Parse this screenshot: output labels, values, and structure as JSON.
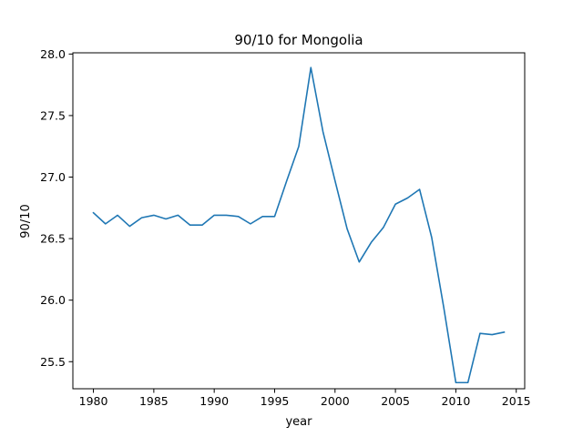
{
  "chart_data": {
    "type": "line",
    "title": "90/10 for Mongolia",
    "xlabel": "year",
    "ylabel": "90/10",
    "xlim": [
      1978.3,
      2015.7
    ],
    "ylim": [
      25.28,
      28.01
    ],
    "xticks": [
      1980,
      1985,
      1990,
      1995,
      2000,
      2005,
      2010,
      2015
    ],
    "yticks": [
      25.5,
      26.0,
      26.5,
      27.0,
      27.5,
      28.0
    ],
    "grid": false,
    "series": [
      {
        "color": "#1f77b4",
        "x": [
          1980,
          1981,
          1982,
          1983,
          1984,
          1985,
          1986,
          1987,
          1988,
          1989,
          1990,
          1991,
          1992,
          1993,
          1994,
          1995,
          1996,
          1997,
          1998,
          1999,
          2000,
          2001,
          2002,
          2003,
          2004,
          2005,
          2006,
          2007,
          2008,
          2009,
          2010,
          2011,
          2012,
          2013,
          2014
        ],
        "values": [
          26.71,
          26.62,
          26.69,
          26.6,
          26.67,
          26.69,
          26.66,
          26.69,
          26.61,
          26.61,
          26.69,
          26.69,
          26.68,
          26.62,
          26.68,
          26.68,
          26.97,
          27.25,
          27.89,
          27.37,
          26.97,
          26.58,
          26.31,
          26.47,
          26.59,
          26.78,
          26.83,
          26.9,
          26.51,
          25.94,
          25.33,
          25.33,
          25.73,
          25.72,
          25.74
        ]
      }
    ]
  }
}
